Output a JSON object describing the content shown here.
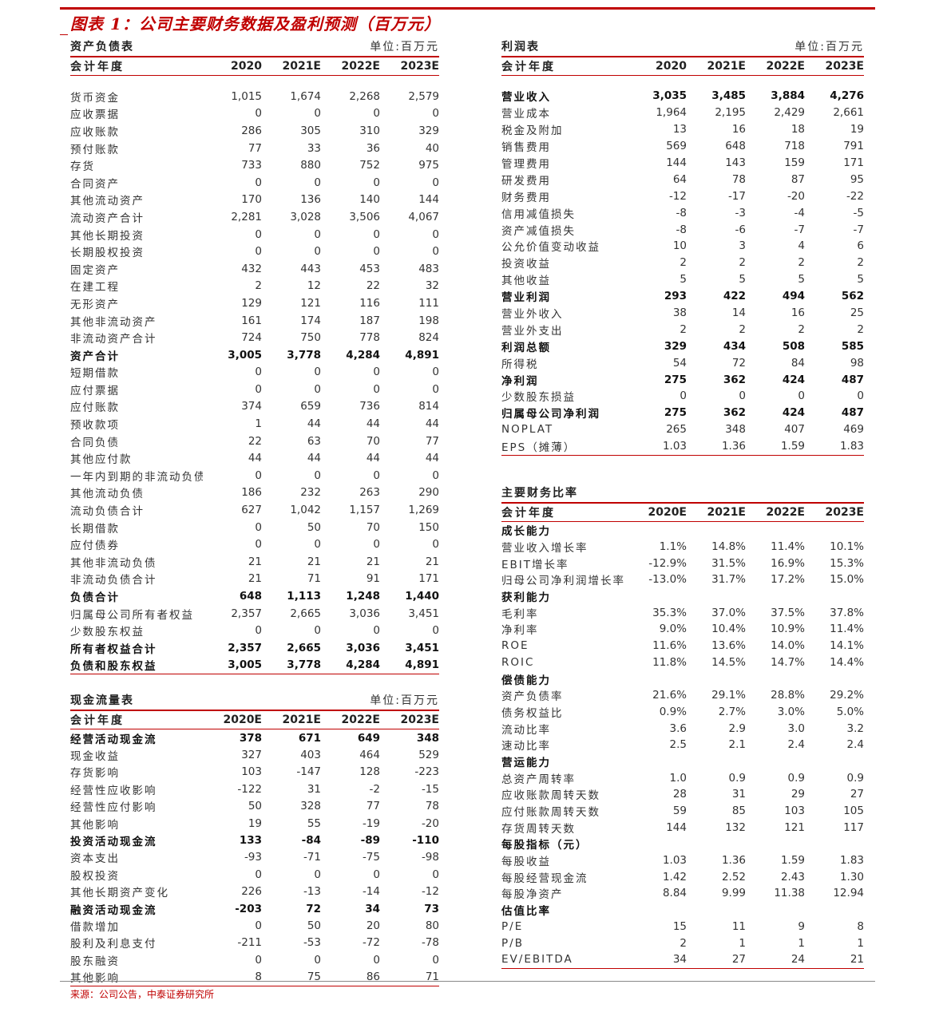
{
  "title": "图表 1：公司主要财务数据及盈利预测（百万元）",
  "source": "来源：公司公告，中泰证券研究所",
  "accent": "#c00000",
  "balance": {
    "title": "资产负债表",
    "unit": "单位:百万元",
    "header": [
      "会计年度",
      "2020",
      "2021E",
      "2022E",
      "2023E"
    ],
    "rows": [
      [
        "货币资金",
        "1,015",
        "1,674",
        "2,268",
        "2,579",
        0
      ],
      [
        "应收票据",
        "0",
        "0",
        "0",
        "0",
        0
      ],
      [
        "应收账款",
        "286",
        "305",
        "310",
        "329",
        0
      ],
      [
        "预付账款",
        "77",
        "33",
        "36",
        "40",
        0
      ],
      [
        "存货",
        "733",
        "880",
        "752",
        "975",
        0
      ],
      [
        "合同资产",
        "0",
        "0",
        "0",
        "0",
        0
      ],
      [
        "其他流动资产",
        "170",
        "136",
        "140",
        "144",
        0
      ],
      [
        "流动资产合计",
        "2,281",
        "3,028",
        "3,506",
        "4,067",
        0
      ],
      [
        "其他长期投资",
        "0",
        "0",
        "0",
        "0",
        0
      ],
      [
        "长期股权投资",
        "0",
        "0",
        "0",
        "0",
        0
      ],
      [
        "固定资产",
        "432",
        "443",
        "453",
        "483",
        0
      ],
      [
        "在建工程",
        "2",
        "12",
        "22",
        "32",
        0
      ],
      [
        "无形资产",
        "129",
        "121",
        "116",
        "111",
        0
      ],
      [
        "其他非流动资产",
        "161",
        "174",
        "187",
        "198",
        0
      ],
      [
        "非流动资产合计",
        "724",
        "750",
        "778",
        "824",
        0
      ],
      [
        "资产合计",
        "3,005",
        "3,778",
        "4,284",
        "4,891",
        1
      ],
      [
        "短期借款",
        "0",
        "0",
        "0",
        "0",
        0
      ],
      [
        "应付票据",
        "0",
        "0",
        "0",
        "0",
        0
      ],
      [
        "应付账款",
        "374",
        "659",
        "736",
        "814",
        0
      ],
      [
        "预收款项",
        "1",
        "44",
        "44",
        "44",
        0
      ],
      [
        "合同负债",
        "22",
        "63",
        "70",
        "77",
        0
      ],
      [
        "其他应付款",
        "44",
        "44",
        "44",
        "44",
        0
      ],
      [
        "一年内到期的非流动负债",
        "0",
        "0",
        "0",
        "0",
        0
      ],
      [
        "其他流动负债",
        "186",
        "232",
        "263",
        "290",
        0
      ],
      [
        "流动负债合计",
        "627",
        "1,042",
        "1,157",
        "1,269",
        0
      ],
      [
        "长期借款",
        "0",
        "50",
        "70",
        "150",
        0
      ],
      [
        "应付债券",
        "0",
        "0",
        "0",
        "0",
        0
      ],
      [
        "其他非流动负债",
        "21",
        "21",
        "21",
        "21",
        0
      ],
      [
        "非流动负债合计",
        "21",
        "71",
        "91",
        "171",
        0
      ],
      [
        "负债合计",
        "648",
        "1,113",
        "1,248",
        "1,440",
        1
      ],
      [
        "归属母公司所有者权益",
        "2,357",
        "2,665",
        "3,036",
        "3,451",
        0
      ],
      [
        "少数股东权益",
        "0",
        "0",
        "0",
        "0",
        0
      ],
      [
        "所有者权益合计",
        "2,357",
        "2,665",
        "3,036",
        "3,451",
        1
      ],
      [
        "负债和股东权益",
        "3,005",
        "3,778",
        "4,284",
        "4,891",
        1
      ]
    ]
  },
  "cashflow": {
    "title": "现金流量表",
    "unit": "单位:百万元",
    "header": [
      "会计年度",
      "2020E",
      "2021E",
      "2022E",
      "2023E"
    ],
    "rows": [
      [
        "经营活动现金流",
        "378",
        "671",
        "649",
        "348",
        1
      ],
      [
        "现金收益",
        "327",
        "403",
        "464",
        "529",
        0
      ],
      [
        "存货影响",
        "103",
        "-147",
        "128",
        "-223",
        0
      ],
      [
        "经营性应收影响",
        "-122",
        "31",
        "-2",
        "-15",
        0
      ],
      [
        "经营性应付影响",
        "50",
        "328",
        "77",
        "78",
        0
      ],
      [
        "其他影响",
        "19",
        "55",
        "-19",
        "-20",
        0
      ],
      [
        "投资活动现金流",
        "133",
        "-84",
        "-89",
        "-110",
        1
      ],
      [
        "资本支出",
        "-93",
        "-71",
        "-75",
        "-98",
        0
      ],
      [
        "股权投资",
        "0",
        "0",
        "0",
        "0",
        0
      ],
      [
        "其他长期资产变化",
        "226",
        "-13",
        "-14",
        "-12",
        0
      ],
      [
        "融资活动现金流",
        "-203",
        "72",
        "34",
        "73",
        1
      ],
      [
        "借款增加",
        "0",
        "50",
        "20",
        "80",
        0
      ],
      [
        "股利及利息支付",
        "-211",
        "-53",
        "-72",
        "-78",
        0
      ],
      [
        "股东融资",
        "0",
        "0",
        "0",
        "0",
        0
      ],
      [
        "其他影响",
        "8",
        "75",
        "86",
        "71",
        0
      ]
    ]
  },
  "income": {
    "title": "利润表",
    "unit": "单位:百万元",
    "header": [
      "会计年度",
      "2020",
      "2021E",
      "2022E",
      "2023E"
    ],
    "rows": [
      [
        "营业收入",
        "3,035",
        "3,485",
        "3,884",
        "4,276",
        1
      ],
      [
        "营业成本",
        "1,964",
        "2,195",
        "2,429",
        "2,661",
        0
      ],
      [
        "税金及附加",
        "13",
        "16",
        "18",
        "19",
        0
      ],
      [
        "销售费用",
        "569",
        "648",
        "718",
        "791",
        0
      ],
      [
        "管理费用",
        "144",
        "143",
        "159",
        "171",
        0
      ],
      [
        "研发费用",
        "64",
        "78",
        "87",
        "95",
        0
      ],
      [
        "财务费用",
        "-12",
        "-17",
        "-20",
        "-22",
        0
      ],
      [
        "信用减值损失",
        "-8",
        "-3",
        "-4",
        "-5",
        0
      ],
      [
        "资产减值损失",
        "-8",
        "-6",
        "-7",
        "-7",
        0
      ],
      [
        "公允价值变动收益",
        "10",
        "3",
        "4",
        "6",
        0
      ],
      [
        "投资收益",
        "2",
        "2",
        "2",
        "2",
        0
      ],
      [
        "其他收益",
        "5",
        "5",
        "5",
        "5",
        0
      ],
      [
        "营业利润",
        "293",
        "422",
        "494",
        "562",
        1
      ],
      [
        "营业外收入",
        "38",
        "14",
        "16",
        "25",
        0
      ],
      [
        "营业外支出",
        "2",
        "2",
        "2",
        "2",
        0
      ],
      [
        "利润总额",
        "329",
        "434",
        "508",
        "585",
        1
      ],
      [
        "所得税",
        "54",
        "72",
        "84",
        "98",
        0
      ],
      [
        "净利润",
        "275",
        "362",
        "424",
        "487",
        1
      ],
      [
        "少数股东损益",
        "0",
        "0",
        "0",
        "0",
        0
      ],
      [
        "归属母公司净利润",
        "275",
        "362",
        "424",
        "487",
        1
      ],
      [
        "NOPLAT",
        "265",
        "348",
        "407",
        "469",
        0
      ],
      [
        "EPS（摊薄）",
        "1.03",
        "1.36",
        "1.59",
        "1.83",
        0
      ]
    ]
  },
  "ratios": {
    "title": "主要财务比率",
    "header": [
      "会计年度",
      "2020E",
      "2021E",
      "2022E",
      "2023E"
    ],
    "rows": [
      [
        "成长能力",
        "",
        "",
        "",
        "",
        1
      ],
      [
        "营业收入增长率",
        "1.1%",
        "14.8%",
        "11.4%",
        "10.1%",
        0
      ],
      [
        "EBIT增长率",
        "-12.9%",
        "31.5%",
        "16.9%",
        "15.3%",
        0
      ],
      [
        "归母公司净利润增长率",
        "-13.0%",
        "31.7%",
        "17.2%",
        "15.0%",
        0
      ],
      [
        "获利能力",
        "",
        "",
        "",
        "",
        1
      ],
      [
        "毛利率",
        "35.3%",
        "37.0%",
        "37.5%",
        "37.8%",
        0
      ],
      [
        "净利率",
        "9.0%",
        "10.4%",
        "10.9%",
        "11.4%",
        0
      ],
      [
        "ROE",
        "11.6%",
        "13.6%",
        "14.0%",
        "14.1%",
        0
      ],
      [
        "ROIC",
        "11.8%",
        "14.5%",
        "14.7%",
        "14.4%",
        0
      ],
      [
        "偿债能力",
        "",
        "",
        "",
        "",
        1
      ],
      [
        "资产负债率",
        "21.6%",
        "29.1%",
        "28.8%",
        "29.2%",
        0
      ],
      [
        "债务权益比",
        "0.9%",
        "2.7%",
        "3.0%",
        "5.0%",
        0
      ],
      [
        "流动比率",
        "3.6",
        "2.9",
        "3.0",
        "3.2",
        0
      ],
      [
        "速动比率",
        "2.5",
        "2.1",
        "2.4",
        "2.4",
        0
      ],
      [
        "营运能力",
        "",
        "",
        "",
        "",
        1
      ],
      [
        "总资产周转率",
        "1.0",
        "0.9",
        "0.9",
        "0.9",
        0
      ],
      [
        "应收账款周转天数",
        "28",
        "31",
        "29",
        "27",
        0
      ],
      [
        "应付账款周转天数",
        "59",
        "85",
        "103",
        "105",
        0
      ],
      [
        "存货周转天数",
        "144",
        "132",
        "121",
        "117",
        0
      ],
      [
        "每股指标（元）",
        "",
        "",
        "",
        "",
        1
      ],
      [
        "每股收益",
        "1.03",
        "1.36",
        "1.59",
        "1.83",
        0
      ],
      [
        "每股经营现金流",
        "1.42",
        "2.52",
        "2.43",
        "1.30",
        0
      ],
      [
        "每股净资产",
        "8.84",
        "9.99",
        "11.38",
        "12.94",
        0
      ],
      [
        "估值比率",
        "",
        "",
        "",
        "",
        1
      ],
      [
        "P/E",
        "15",
        "11",
        "9",
        "8",
        0
      ],
      [
        "P/B",
        "2",
        "1",
        "1",
        "1",
        0
      ],
      [
        "EV/EBITDA",
        "34",
        "27",
        "24",
        "21",
        0
      ]
    ]
  }
}
